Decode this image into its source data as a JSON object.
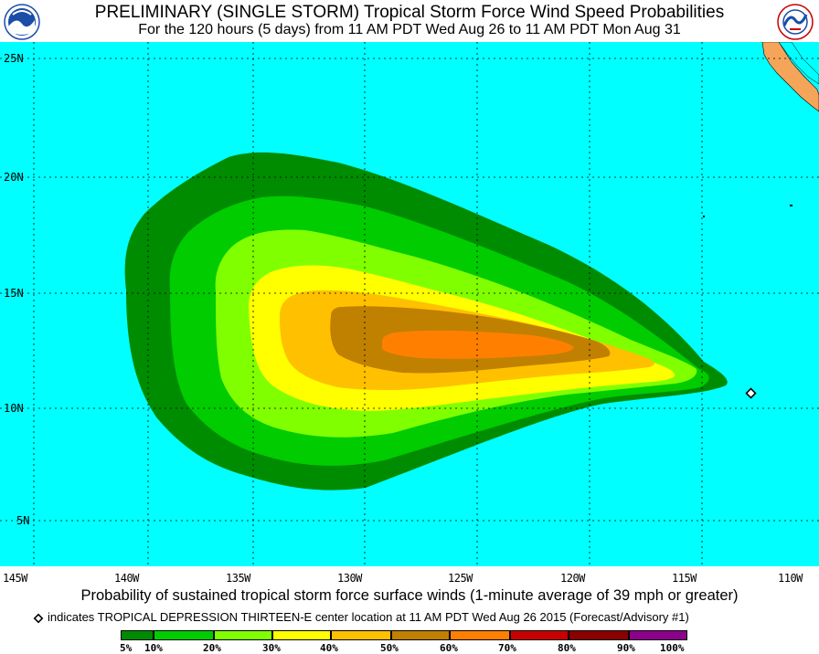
{
  "header": {
    "title": "PRELIMINARY (SINGLE STORM) Tropical Storm Force Wind Speed Probabilities",
    "subtitle": "For the 120 hours (5 days) from 11 AM PDT Wed Aug 26 to 11 AM PDT Mon Aug 31",
    "logo_left": "noaa-logo",
    "logo_right": "nws-logo"
  },
  "map": {
    "ocean_color": "#00ffff",
    "land_color": "#f5a55a",
    "grid_color": "#000000",
    "lat_labels": [
      "25N",
      "20N",
      "15N",
      "10N",
      "5N"
    ],
    "lon_labels": [
      "145W",
      "140W",
      "135W",
      "130W",
      "125W",
      "120W",
      "115W",
      "110W"
    ],
    "storm_marker": "center-location-diamond"
  },
  "caption": "Probability of sustained tropical storm force surface winds (1-minute average of 39 mph or greater)",
  "indicates_text": "indicates TROPICAL DEPRESSION THIRTEEN-E center location at 11 AM PDT Wed Aug 26 2015 (Forecast/Advisory #1)",
  "legend": {
    "colors": [
      "#008c00",
      "#00cc00",
      "#80ff00",
      "#ffff00",
      "#ffc000",
      "#c08000",
      "#ff8000",
      "#c80000",
      "#8c0000",
      "#8c008c"
    ],
    "labels": [
      "5%",
      "10%",
      "20%",
      "30%",
      "40%",
      "50%",
      "60%",
      "70%",
      "80%",
      "90%",
      "100%"
    ]
  }
}
